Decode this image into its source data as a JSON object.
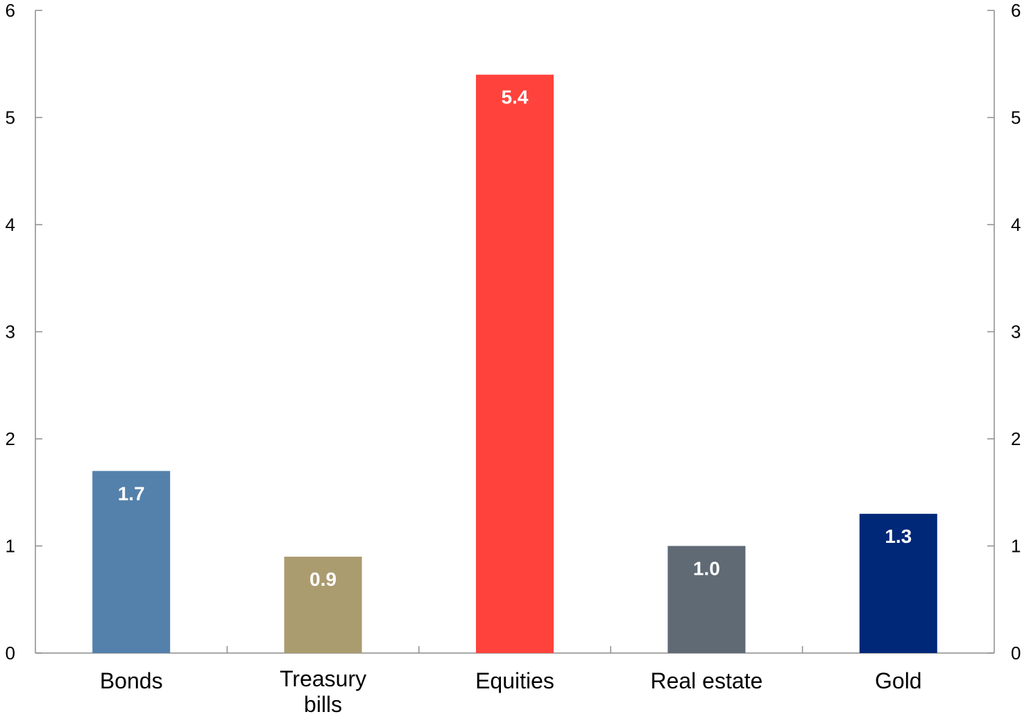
{
  "chart_data": {
    "type": "bar",
    "categories": [
      "Bonds",
      "Treasury bills",
      "Equities",
      "Real estate",
      "Gold"
    ],
    "category_lines": [
      [
        "Bonds"
      ],
      [
        "Treasury",
        "bills"
      ],
      [
        "Equities"
      ],
      [
        "Real estate"
      ],
      [
        "Gold"
      ]
    ],
    "values": [
      1.7,
      0.9,
      5.4,
      1.0,
      1.3
    ],
    "data_labels": [
      "1.7",
      "0.9",
      "5.4",
      "1.0",
      "1.3"
    ],
    "colors": [
      "#5381ab",
      "#ab9c70",
      "#ff433c",
      "#5f6a75",
      "#002878"
    ],
    "ylim": [
      0,
      6
    ],
    "yticks": [
      0,
      1,
      2,
      3,
      4,
      5,
      6
    ],
    "left_axis": true,
    "right_axis": true,
    "grid": false,
    "title": "",
    "xlabel": "",
    "ylabel": ""
  }
}
